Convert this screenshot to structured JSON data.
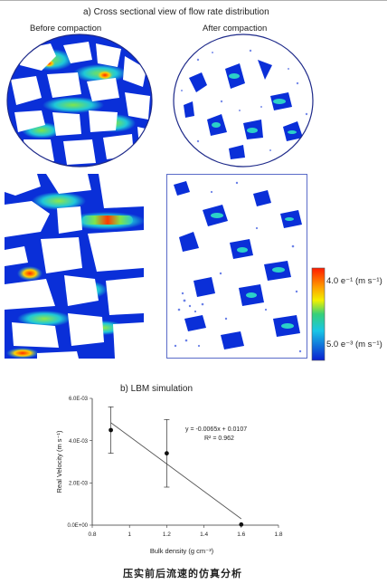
{
  "figure": {
    "panel_a": {
      "title": "a) Cross sectional view of flow rate distribution",
      "before_label": "Before compaction",
      "after_label": "After compaction",
      "legend_high": "4.0 e⁻¹ (m s⁻¹)",
      "legend_low": "5.0 e⁻³ (m s⁻¹)",
      "colors": {
        "low": "#0a2fd8",
        "mid": "#35d07a",
        "high": "#ff2a00"
      }
    },
    "panel_b": {
      "title": "b) LBM simulation",
      "equation": "y = -0.0065x + 0.0107",
      "r_squared": "R² = 0.962"
    },
    "caption": "压实前后流速的仿真分析"
  },
  "chart_data": {
    "type": "scatter",
    "title": "b) LBM simulation",
    "xlabel": "Bulk density (g cm⁻³)",
    "ylabel": "Real Velocity (m s⁻¹)",
    "xlim": [
      0.8,
      1.8
    ],
    "ylim": [
      0,
      0.006
    ],
    "x_ticks": [
      "0.8",
      "1",
      "1.2",
      "1.4",
      "1.6",
      "1.8"
    ],
    "y_ticks": [
      "0.0E+00",
      "2.0E-03",
      "4.0E-03",
      "6.0E-03"
    ],
    "points": [
      {
        "x": 0.9,
        "y": 0.0045,
        "err": 0.0011
      },
      {
        "x": 1.2,
        "y": 0.0034,
        "err": 0.0016
      },
      {
        "x": 1.6,
        "y": 3e-05,
        "err": 0
      }
    ],
    "trendline": {
      "slope": -0.0065,
      "intercept": 0.0107,
      "x_from": 0.9,
      "x_to": 1.6
    },
    "grid": false,
    "legend": "none"
  }
}
